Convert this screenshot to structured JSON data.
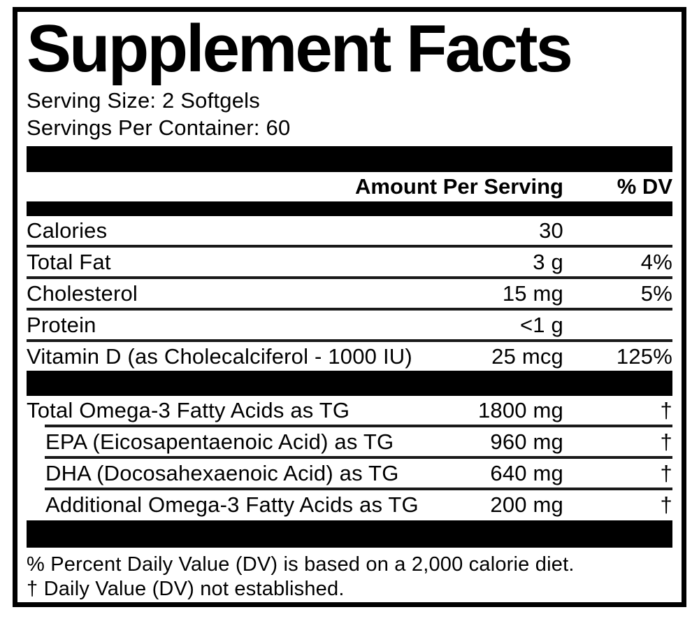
{
  "label": {
    "title": "Supplement Facts",
    "serving_size": "Serving Size: 2 Softgels",
    "servings_per_container": "Servings Per Container: 60",
    "header": {
      "amount": "Amount Per Serving",
      "dv": "% DV"
    },
    "main_rows": [
      {
        "name": "Calories",
        "amount": "30",
        "dv": "",
        "indent": false
      },
      {
        "name": "Total Fat",
        "amount": "3 g",
        "dv": "4%",
        "indent": false
      },
      {
        "name": "Cholesterol",
        "amount": "15 mg",
        "dv": "5%",
        "indent": false
      },
      {
        "name": "Protein",
        "amount": "<1 g",
        "dv": "",
        "indent": false
      },
      {
        "name": "Vitamin D (as Cholecalciferol - 1000 IU)",
        "amount": "25 mcg",
        "dv": "125%",
        "indent": false
      }
    ],
    "omega_rows": [
      {
        "name": "Total Omega-3 Fatty Acids as TG",
        "amount": "1800 mg",
        "dv": "†",
        "indent": false
      },
      {
        "name": "EPA (Eicosapentaenoic Acid) as TG",
        "amount": "960 mg",
        "dv": "†",
        "indent": true
      },
      {
        "name": "DHA (Docosahexaenoic Acid) as TG",
        "amount": "640 mg",
        "dv": "†",
        "indent": true
      },
      {
        "name": "Additional Omega-3 Fatty Acids as TG",
        "amount": "200 mg",
        "dv": "†",
        "indent": true
      }
    ],
    "footnotes": [
      "% Percent Daily Value (DV) is based on a 2,000 calorie diet.",
      "† Daily Value (DV) not established."
    ],
    "colors": {
      "ink": "#000000",
      "paper": "#ffffff"
    }
  }
}
